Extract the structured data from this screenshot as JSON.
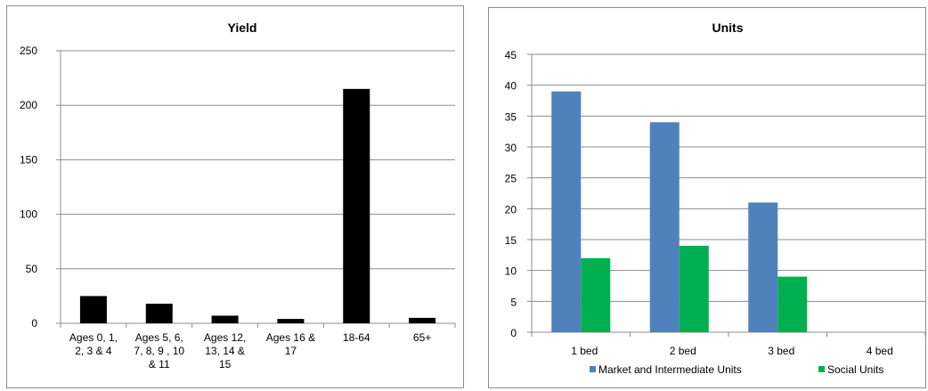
{
  "chart_data": [
    {
      "type": "bar",
      "title": "Yield",
      "categories": [
        "Ages 0, 1, 2, 3 & 4",
        "Ages 5, 6, 7, 8, 9 , 10 & 11",
        "Ages 12, 13, 14 & 15",
        "Ages 16 & 17",
        "18-64",
        "65+"
      ],
      "category_label_lines": [
        [
          "Ages 0, 1,",
          "2, 3 & 4"
        ],
        [
          "Ages 5, 6,",
          "7, 8, 9 , 10",
          "& 11"
        ],
        [
          "Ages 12,",
          "13, 14 &",
          "15"
        ],
        [
          "Ages 16 &",
          "17"
        ],
        [
          "18-64"
        ],
        [
          "65+"
        ]
      ],
      "values": [
        25,
        18,
        7,
        4,
        215,
        5
      ],
      "ylim": [
        0,
        250
      ],
      "yticks": [
        0,
        50,
        100,
        150,
        200,
        250
      ],
      "grid": true,
      "colors": {
        "bar": "#000000"
      }
    },
    {
      "type": "bar",
      "title": "Units",
      "categories": [
        "1 bed",
        "2 bed",
        "3 bed",
        "4 bed"
      ],
      "series": [
        {
          "name": "Market and Intermediate Units",
          "values": [
            39,
            34,
            21,
            0
          ],
          "color": "#4f81bd"
        },
        {
          "name": "Social Units",
          "values": [
            12,
            14,
            9,
            0
          ],
          "color": "#00b050"
        }
      ],
      "ylim": [
        0,
        45
      ],
      "yticks": [
        0,
        5,
        10,
        15,
        20,
        25,
        30,
        35,
        40,
        45
      ],
      "grid": true,
      "legend": "bottom"
    }
  ]
}
